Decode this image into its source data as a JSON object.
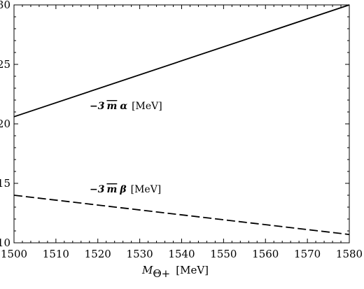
{
  "chart_data": {
    "type": "line",
    "title": "",
    "xlabel_main": "M",
    "xlabel_sub": "Θ+",
    "xlabel_unit": "[MeV]",
    "ylabel": "",
    "xlim": [
      1500,
      1580
    ],
    "ylim": [
      10,
      30
    ],
    "x_ticks": [
      1500,
      1510,
      1520,
      1530,
      1540,
      1550,
      1560,
      1570,
      1580
    ],
    "y_ticks": [
      10,
      15,
      20,
      25,
      30
    ],
    "grid": false,
    "series": [
      {
        "label_prefix": "−3",
        "label_mbar": "m",
        "label_greek": "α",
        "label_unit": "[MeV]",
        "style": "solid",
        "color": "#000000",
        "x": [
          1500,
          1580
        ],
        "y": [
          20.6,
          30.0
        ]
      },
      {
        "label_prefix": "−3",
        "label_mbar": "m",
        "label_greek": "β",
        "label_unit": "[MeV]",
        "style": "dashed",
        "color": "#000000",
        "x": [
          1500,
          1580
        ],
        "y": [
          14.0,
          10.7
        ]
      }
    ]
  }
}
